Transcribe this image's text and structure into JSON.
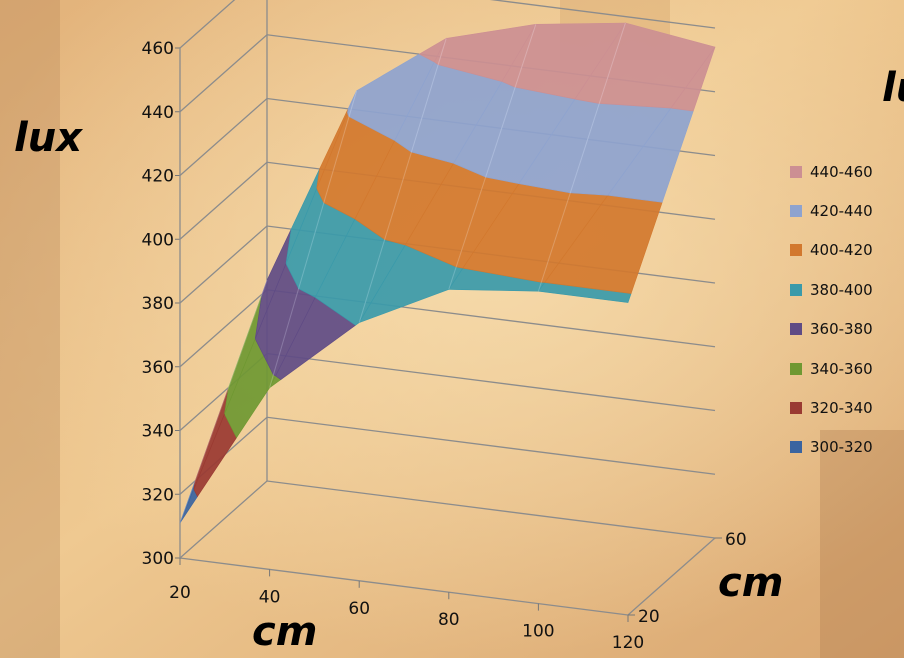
{
  "chart_data": {
    "type": "surface",
    "title": "",
    "ylabel": "lux",
    "xlabel": "cm",
    "zlabel": "cm",
    "legend_title_partial": "lu",
    "ylim": [
      300,
      460
    ],
    "y_ticks": [
      "300",
      "320",
      "340",
      "360",
      "380",
      "400",
      "420",
      "440",
      "460"
    ],
    "x_ticks": [
      "20",
      "40",
      "60",
      "80",
      "100",
      "120"
    ],
    "z_ticks": [
      "20",
      "60"
    ],
    "x": [
      20,
      40,
      60,
      80,
      100,
      120
    ],
    "depth": [
      20,
      60
    ],
    "values": [
      [
        311,
        357,
        381,
        395,
        398,
        398
      ],
      [
        363,
        426,
        446,
        454,
        458,
        454
      ]
    ],
    "grid": true,
    "legend_position": "right",
    "legend": [
      {
        "label": "440-460",
        "color": "#CC8F93"
      },
      {
        "label": "420-440",
        "color": "#8EA3CF"
      },
      {
        "label": "400-420",
        "color": "#D2782E"
      },
      {
        "label": "380-400",
        "color": "#3A9AAA"
      },
      {
        "label": "360-380",
        "color": "#5F4B85"
      },
      {
        "label": "340-360",
        "color": "#6F9832"
      },
      {
        "label": "320-340",
        "color": "#9A3A32"
      },
      {
        "label": "300-320",
        "color": "#3A64A0"
      }
    ]
  }
}
